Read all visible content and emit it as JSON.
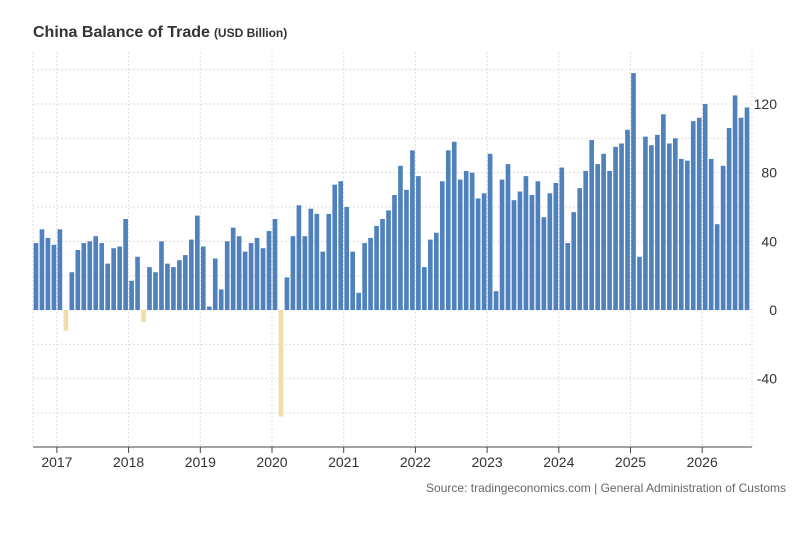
{
  "header": {
    "title": "China Balance of Trade",
    "unit": "(USD Billion)"
  },
  "source": "Source: tradingeconomics.com | General Administration of Customs",
  "colors": {
    "positive": "#4f81bd",
    "negative": "#f3dbaa",
    "grid": "#dddddd",
    "axis": "#444444"
  },
  "chart_data": {
    "type": "bar",
    "title": "China Balance of Trade",
    "ylabel": "(USD Billion)",
    "xlabel": "",
    "ylim": [
      -80,
      140
    ],
    "grid": true,
    "yticks": [
      120,
      80,
      40,
      0,
      -40
    ],
    "xticks": [
      "2017",
      "2018",
      "2019",
      "2020",
      "2021",
      "2022",
      "2023",
      "2024",
      "2025",
      "2026"
    ],
    "x_start": "2016-09",
    "frequency": "monthly",
    "values": [
      39,
      47,
      42,
      38,
      47,
      -12,
      22,
      35,
      39,
      40,
      43,
      39,
      27,
      36,
      37,
      53,
      17,
      31,
      -7,
      25,
      22,
      40,
      27,
      25,
      29,
      32,
      41,
      55,
      37,
      2,
      30,
      12,
      40,
      48,
      43,
      34,
      39,
      42,
      36,
      46,
      53,
      -62,
      19,
      43,
      61,
      43,
      59,
      56,
      34,
      56,
      73,
      75,
      60,
      34,
      10,
      39,
      42,
      49,
      53,
      58,
      67,
      84,
      70,
      93,
      78,
      25,
      41,
      45,
      75,
      93,
      98,
      76,
      81,
      80,
      65,
      68,
      91,
      11,
      76,
      85,
      64,
      69,
      78,
      67,
      75,
      54,
      68,
      74,
      83,
      39,
      57,
      71,
      81,
      99,
      85,
      91,
      81,
      95,
      97,
      105,
      138,
      31,
      101,
      96,
      102,
      114,
      97,
      100,
      88,
      87,
      110,
      112,
      120,
      88,
      50,
      84,
      106,
      125,
      112,
      118
    ]
  }
}
